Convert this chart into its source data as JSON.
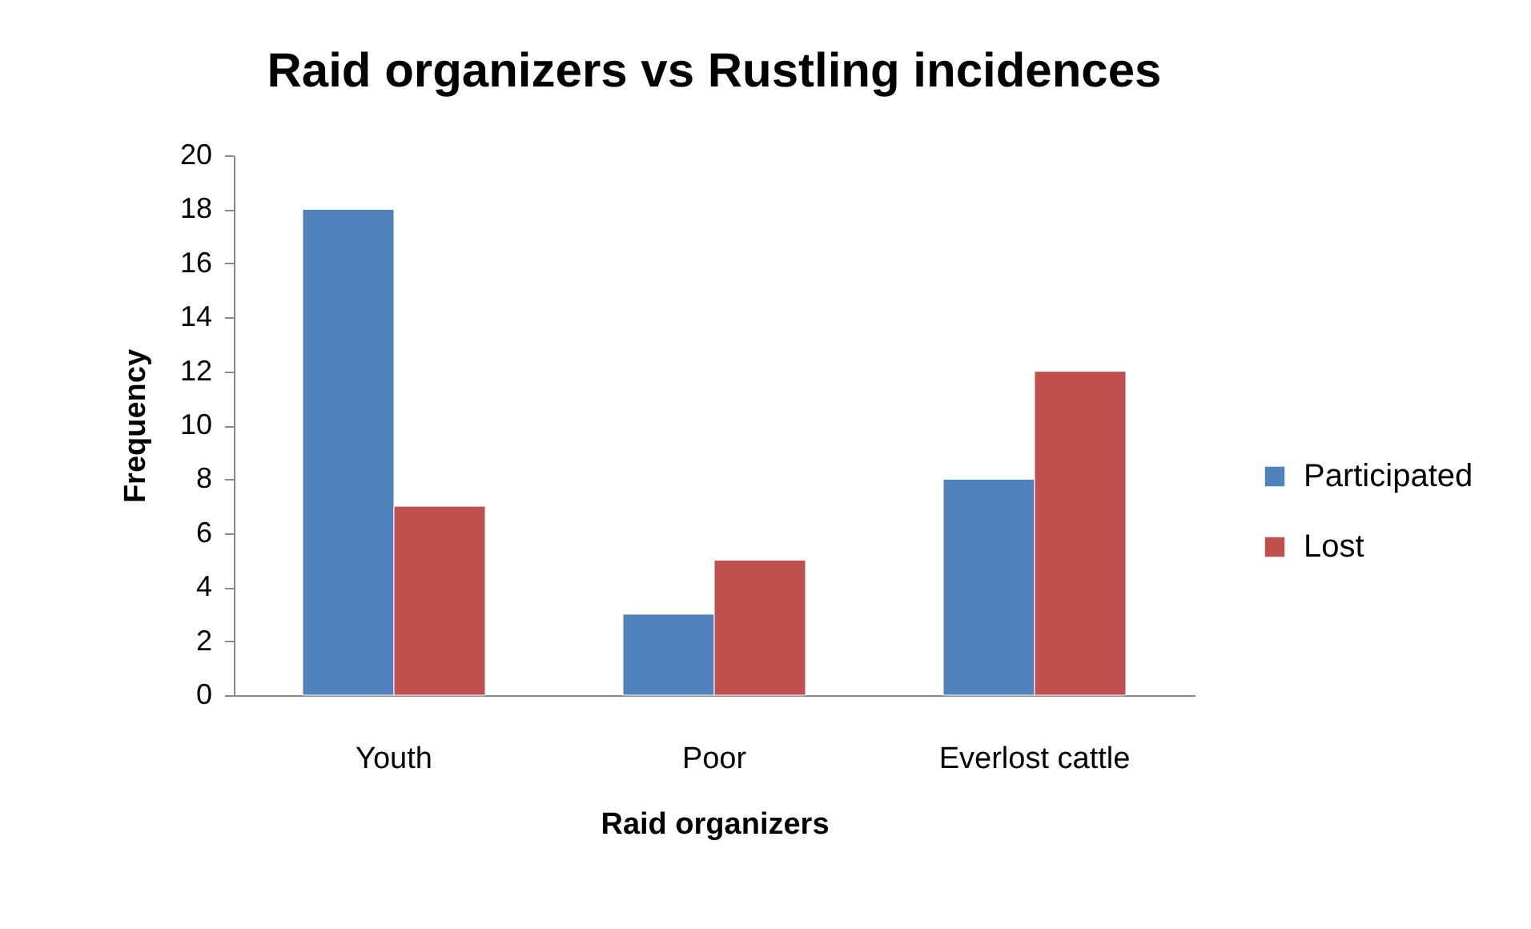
{
  "chart_data": {
    "type": "bar",
    "title": "Raid organizers vs Rustling incidences",
    "xlabel": "Raid organizers",
    "ylabel": "Frequency",
    "categories": [
      "Youth",
      "Poor",
      "Everlost cattle"
    ],
    "series": [
      {
        "name": "Participated",
        "color": "#4f81bd",
        "values": [
          18,
          3,
          8
        ]
      },
      {
        "name": "Lost",
        "color": "#c0504d",
        "values": [
          7,
          5,
          12
        ]
      }
    ],
    "ylim": [
      0,
      20
    ],
    "yticks": [
      0,
      2,
      4,
      6,
      8,
      10,
      12,
      14,
      16,
      18,
      20
    ],
    "grid": false,
    "legend": "right"
  }
}
